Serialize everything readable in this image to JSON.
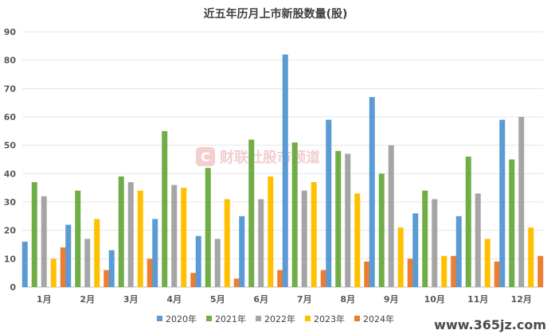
{
  "chart_data": {
    "type": "bar",
    "title": "近五年历月上市新股数量(股)",
    "categories": [
      "1月",
      "2月",
      "3月",
      "4月",
      "5月",
      "6月",
      "7月",
      "8月",
      "9月",
      "10月",
      "11月",
      "12月"
    ],
    "ylim": [
      0,
      90
    ],
    "yticks": [
      0,
      10,
      20,
      30,
      40,
      50,
      60,
      70,
      80,
      90
    ],
    "grid": true,
    "legend_position": "bottom",
    "series": [
      {
        "name": "2020年",
        "color": "#5b9bd5",
        "values": [
          16,
          22,
          13,
          24,
          18,
          25,
          82,
          59,
          67,
          26,
          25,
          59
        ]
      },
      {
        "name": "2021年",
        "color": "#70ad47",
        "values": [
          37,
          34,
          39,
          55,
          42,
          52,
          51,
          48,
          40,
          34,
          46,
          45
        ]
      },
      {
        "name": "2022年",
        "color": "#a5a5a5",
        "values": [
          32,
          17,
          37,
          36,
          17,
          31,
          34,
          47,
          50,
          31,
          33,
          60
        ]
      },
      {
        "name": "2023年",
        "color": "#ffc000",
        "values": [
          10,
          24,
          34,
          35,
          31,
          39,
          37,
          33,
          21,
          11,
          17,
          21
        ]
      },
      {
        "name": "2024年",
        "color": "#ed7d31",
        "values": [
          14,
          6,
          10,
          5,
          3,
          6,
          6,
          9,
          10,
          11,
          9,
          11
        ]
      }
    ]
  },
  "watermark": {
    "text": "财联社股市频道",
    "icon_letter": "C"
  },
  "footer_watermark": "www.365jz.com"
}
